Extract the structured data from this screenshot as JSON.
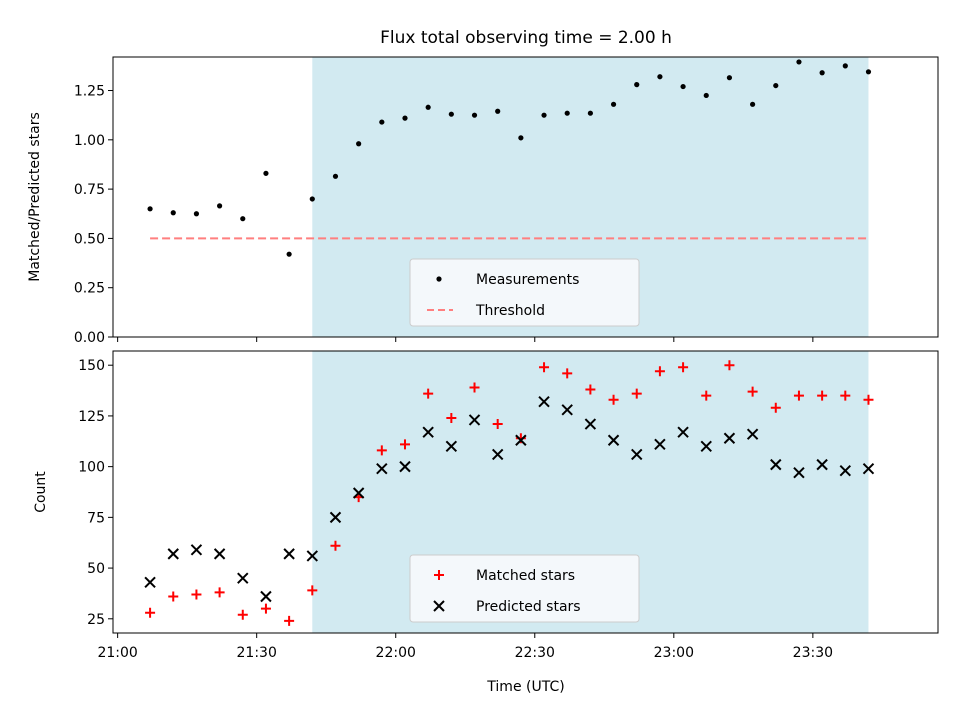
{
  "title": "Flux total observing time = 2.00 h",
  "xlabel": "Time (UTC)",
  "xticks": [
    "21:00",
    "21:30",
    "22:00",
    "22:30",
    "23:00",
    "23:30"
  ],
  "colors": {
    "shade": "#add8e6",
    "measure": "#000000",
    "threshold": "#ff7f7f",
    "matched": "#ff0000",
    "predicted": "#000000",
    "legend_bg": "#f7fafc"
  },
  "chart_data": [
    {
      "type": "scatter",
      "panel": "top",
      "ylabel": "Matched/Predicted stars",
      "ylim": [
        0,
        1.42
      ],
      "yticks": [
        "0.00",
        "0.25",
        "0.50",
        "0.75",
        "1.00",
        "1.25"
      ],
      "xlim": [
        "20:59",
        "23:57"
      ],
      "shaded_span": [
        "21:42",
        "23:42"
      ],
      "legend": {
        "placement": "lower-center",
        "entries": [
          "Measurements",
          "Threshold"
        ]
      },
      "threshold": {
        "name": "Threshold",
        "value": 0.5,
        "x_range": [
          "21:07",
          "23:42"
        ],
        "style": "dashed"
      },
      "series": [
        {
          "name": "Measurements",
          "marker": "dot",
          "x": [
            "21:07",
            "21:12",
            "21:17",
            "21:22",
            "21:27",
            "21:32",
            "21:37",
            "21:42",
            "21:47",
            "21:52",
            "21:57",
            "22:02",
            "22:07",
            "22:12",
            "22:17",
            "22:22",
            "22:27",
            "22:32",
            "22:37",
            "22:42",
            "22:47",
            "22:52",
            "22:57",
            "23:02",
            "23:07",
            "23:12",
            "23:17",
            "23:22",
            "23:27",
            "23:32",
            "23:37",
            "23:42"
          ],
          "y": [
            0.65,
            0.63,
            0.625,
            0.665,
            0.6,
            0.83,
            0.42,
            0.7,
            0.815,
            0.98,
            1.09,
            1.11,
            1.165,
            1.13,
            1.125,
            1.145,
            1.01,
            1.125,
            1.135,
            1.135,
            1.18,
            1.28,
            1.32,
            1.27,
            1.225,
            1.315,
            1.18,
            1.275,
            1.395,
            1.34,
            1.375,
            1.345
          ]
        }
      ]
    },
    {
      "type": "scatter",
      "panel": "bottom",
      "ylabel": "Count",
      "ylim": [
        18,
        157
      ],
      "yticks": [
        "25",
        "50",
        "75",
        "100",
        "125",
        "150"
      ],
      "xlim": [
        "20:59",
        "23:57"
      ],
      "shaded_span": [
        "21:42",
        "23:42"
      ],
      "legend": {
        "placement": "lower-center",
        "entries": [
          "Matched stars",
          "Predicted stars"
        ]
      },
      "x": [
        "21:07",
        "21:12",
        "21:17",
        "21:22",
        "21:27",
        "21:32",
        "21:37",
        "21:42",
        "21:47",
        "21:52",
        "21:57",
        "22:02",
        "22:07",
        "22:12",
        "22:17",
        "22:22",
        "22:27",
        "22:32",
        "22:37",
        "22:42",
        "22:47",
        "22:52",
        "22:57",
        "23:02",
        "23:07",
        "23:12",
        "23:17",
        "23:22",
        "23:27",
        "23:32",
        "23:37",
        "23:42"
      ],
      "series": [
        {
          "name": "Matched stars",
          "marker": "plus",
          "values": [
            28,
            36,
            37,
            38,
            27,
            30,
            24,
            39,
            61,
            85,
            108,
            111,
            136,
            124,
            139,
            121,
            114,
            149,
            146,
            138,
            133,
            136,
            147,
            149,
            135,
            150,
            137,
            129,
            135,
            135,
            135,
            133
          ]
        },
        {
          "name": "Predicted stars",
          "marker": "x",
          "values": [
            43,
            57,
            59,
            57,
            45,
            36,
            57,
            56,
            75,
            87,
            99,
            100,
            117,
            110,
            123,
            106,
            113,
            132,
            128,
            121,
            113,
            106,
            111,
            117,
            110,
            114,
            116,
            101,
            97,
            101,
            98,
            99
          ]
        }
      ]
    }
  ]
}
